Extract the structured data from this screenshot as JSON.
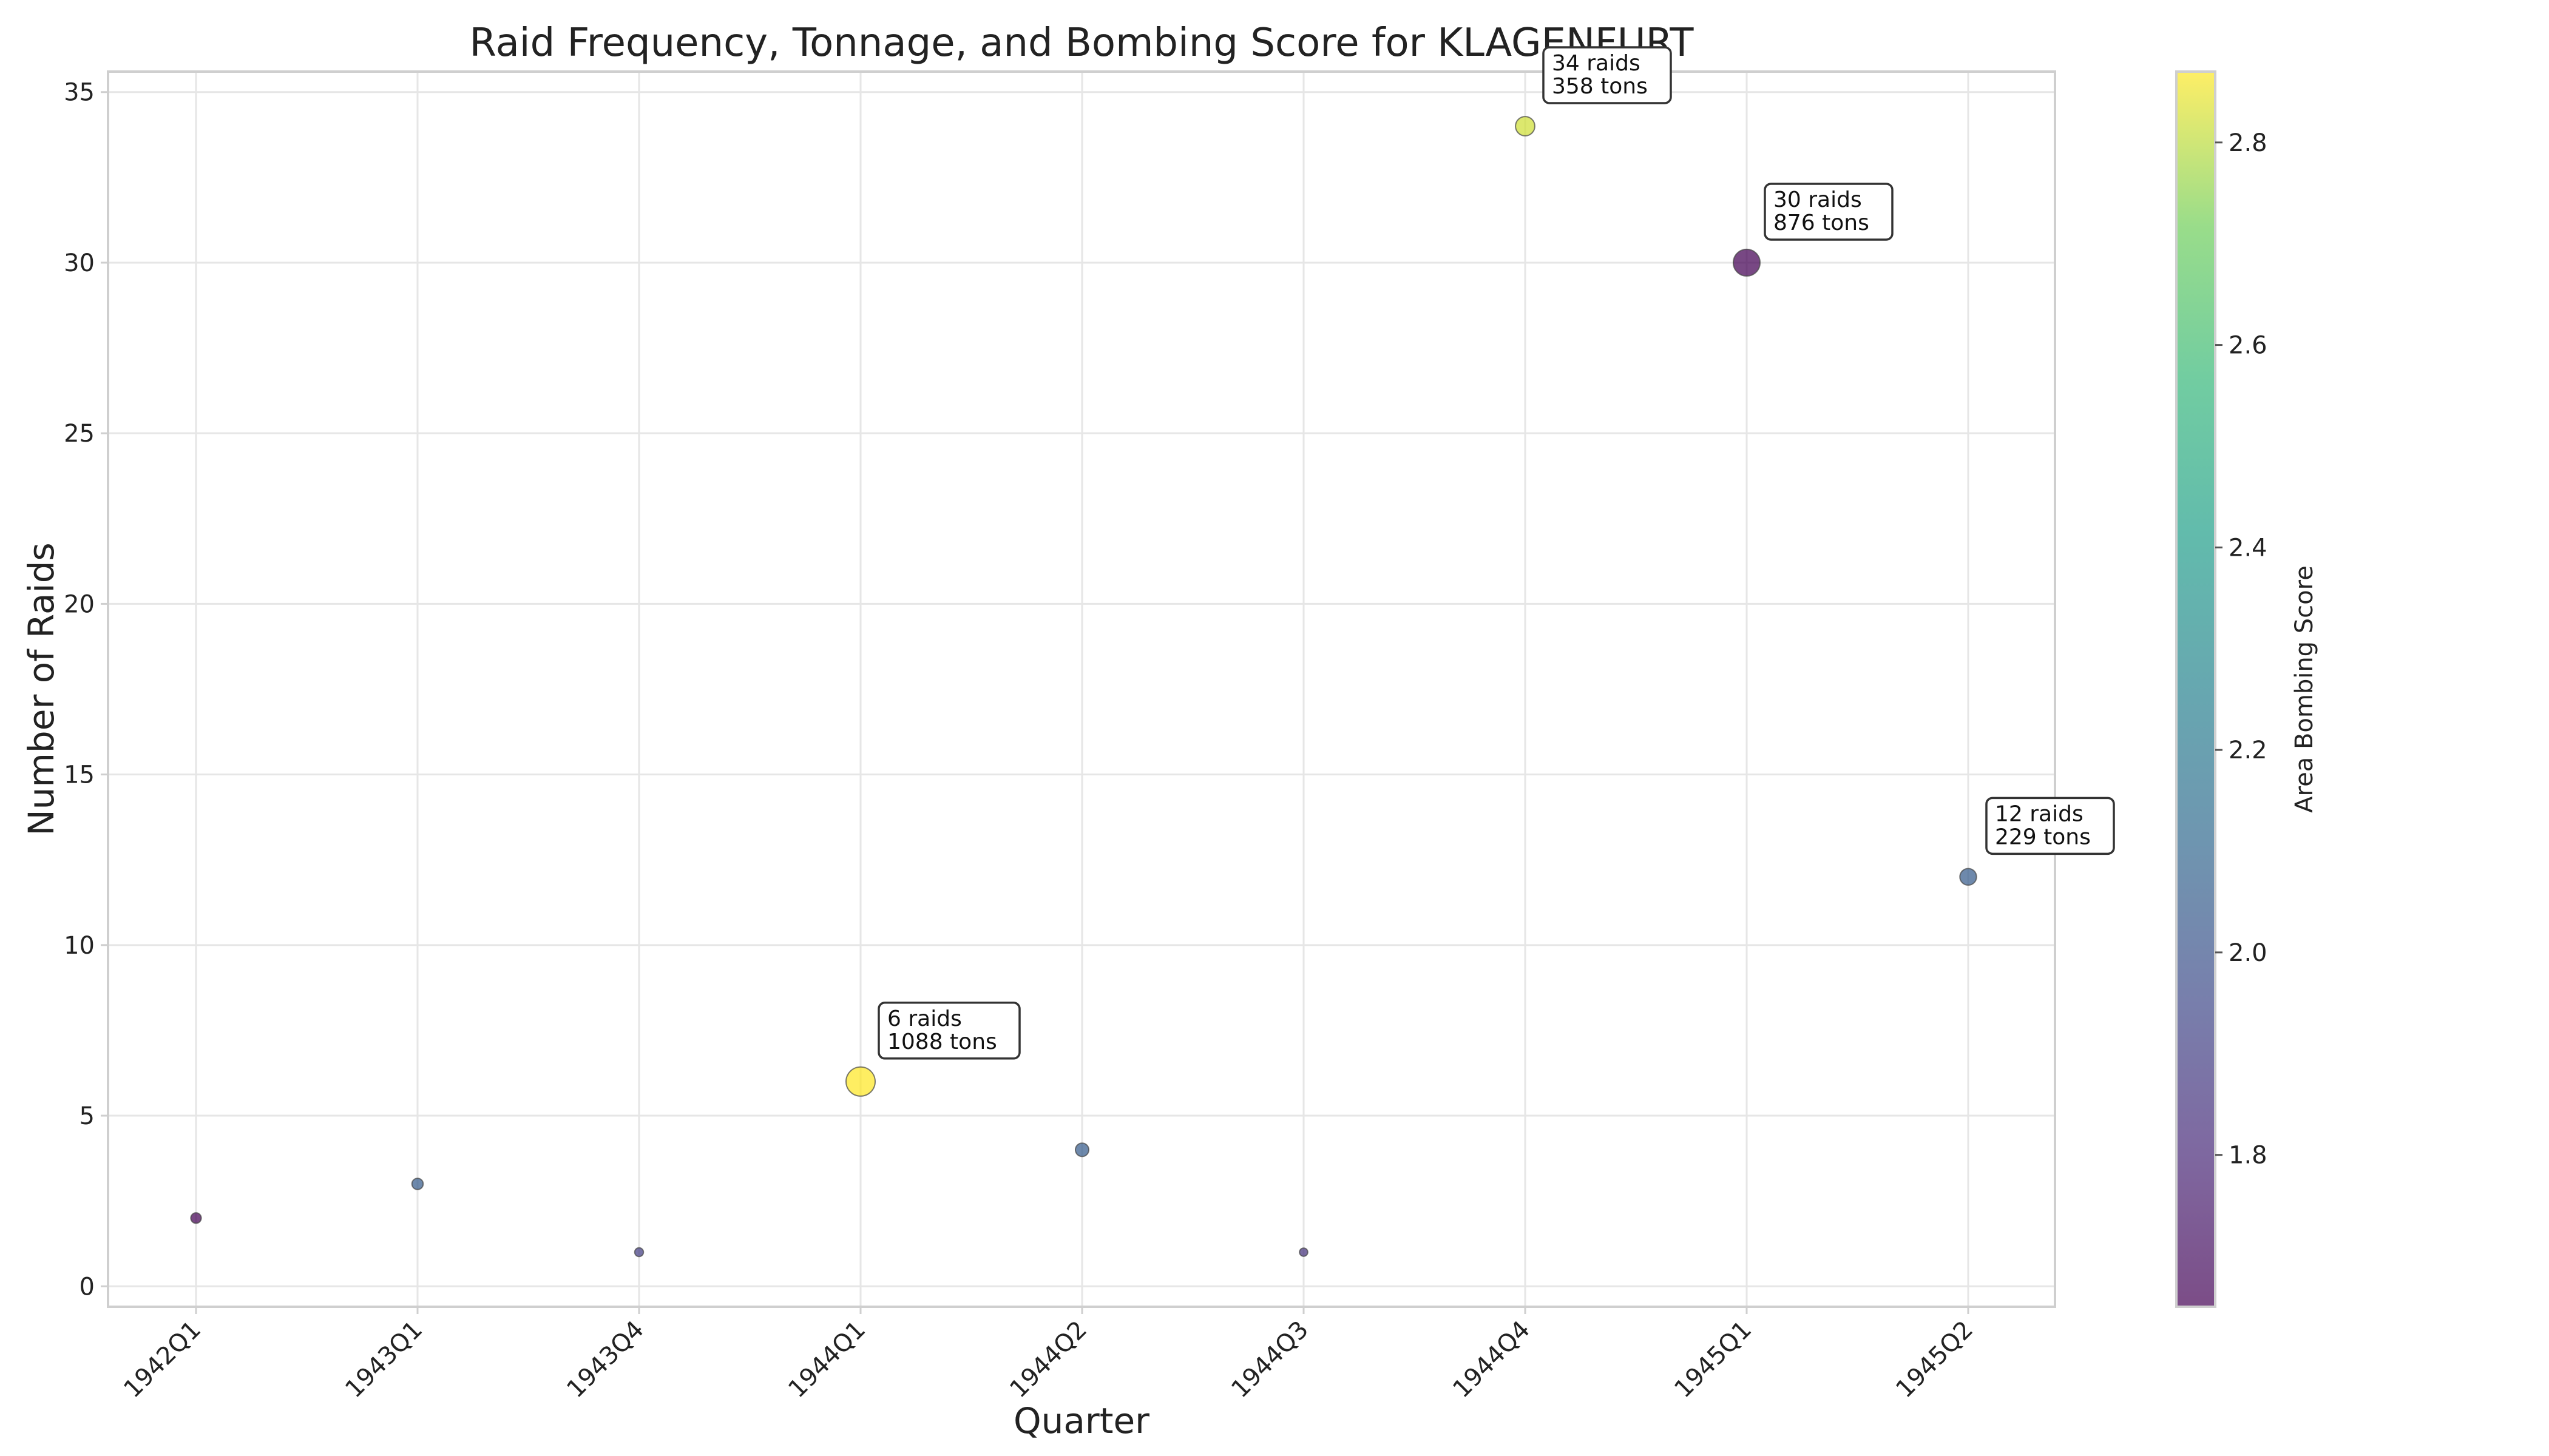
{
  "chart_data": {
    "type": "scatter",
    "title": "Raid Frequency, Tonnage, and Bombing Score for KLAGENFURT",
    "xlabel": "Quarter",
    "ylabel": "Number of Raids",
    "categories": [
      "1942Q1",
      "1943Q1",
      "1943Q4",
      "1944Q1",
      "1944Q2",
      "1944Q3",
      "1944Q4",
      "1945Q1",
      "1945Q2"
    ],
    "raids": [
      2,
      3,
      1,
      6,
      4,
      1,
      34,
      30,
      12
    ],
    "tonnage": [
      40,
      55,
      15,
      1088,
      110,
      10,
      358,
      876,
      229
    ],
    "area_bombing_score": [
      1.65,
      2.05,
      1.9,
      2.87,
      2.05,
      1.85,
      2.82,
      1.65,
      2.05
    ],
    "ylim": [
      -0.6,
      35.6
    ],
    "yticks": [
      0,
      5,
      10,
      15,
      20,
      25,
      30,
      35
    ],
    "grid": true,
    "colorbar": {
      "label": "Area Bombing Score",
      "colormap": "viridis",
      "range": [
        1.65,
        2.87
      ],
      "ticks": [
        1.8,
        2.0,
        2.2,
        2.4,
        2.6,
        2.8
      ],
      "tick_labels": [
        "1.8",
        "2.0",
        "2.2",
        "2.4",
        "2.6",
        "2.8"
      ]
    },
    "annotations": [
      {
        "index": 3,
        "line1": "6 raids",
        "line2": "1088 tons"
      },
      {
        "index": 6,
        "line1": "34 raids",
        "line2": "358 tons"
      },
      {
        "index": 7,
        "line1": "30 raids",
        "line2": "876 tons"
      },
      {
        "index": 8,
        "line1": "12 raids",
        "line2": "229 tons"
      }
    ]
  }
}
